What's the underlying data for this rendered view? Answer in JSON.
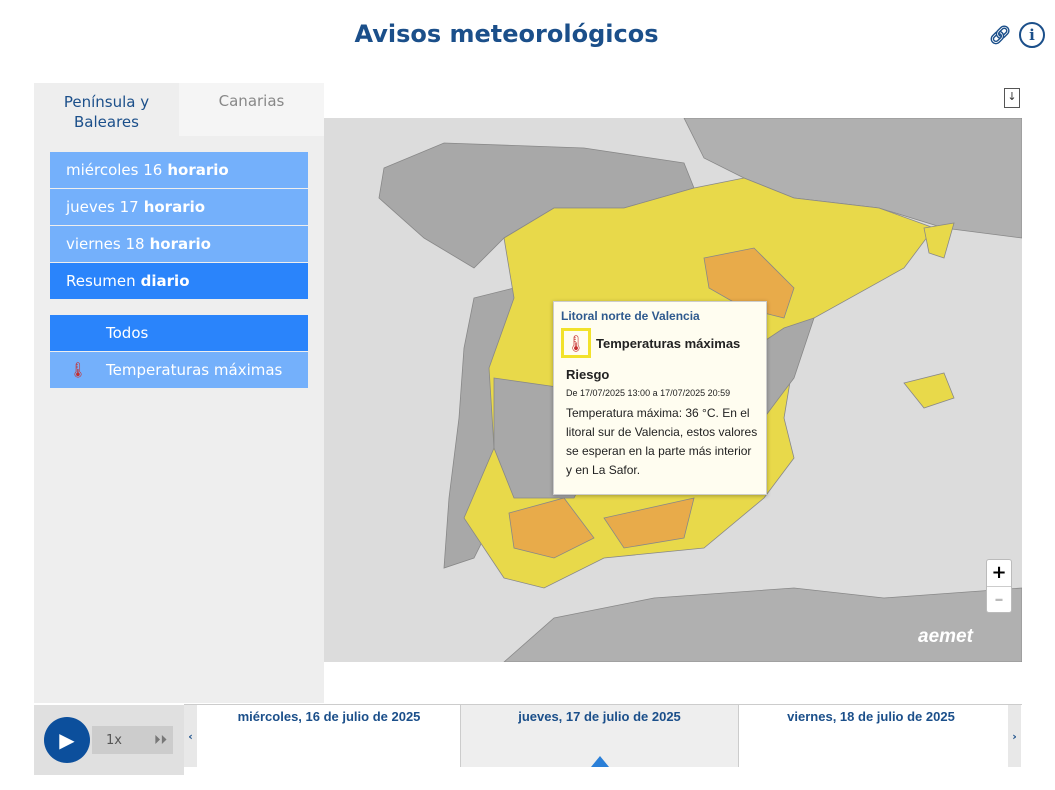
{
  "header": {
    "title": "Avisos meteorológicos",
    "link_icon": "link-icon",
    "info_icon": "info-icon"
  },
  "tabs": [
    {
      "label": "Península y Baleares",
      "active": true
    },
    {
      "label": "Canarias",
      "active": false
    }
  ],
  "days": [
    {
      "day": "miércoles 16",
      "mode": "horario"
    },
    {
      "day": "jueves 17",
      "mode": "horario"
    },
    {
      "day": "viernes 18",
      "mode": "horario"
    },
    {
      "day": "Resumen",
      "mode": "diario",
      "selected": true
    }
  ],
  "filters": [
    {
      "label": "Todos",
      "selected": true
    },
    {
      "label": "Temperaturas máximas",
      "icon": "thermometer-icon"
    }
  ],
  "tooltip": {
    "zone": "Litoral norte de Valencia",
    "type": "Temperaturas máximas",
    "level": "Riesgo",
    "date": "De 17/07/2025 13:00 a 17/07/2025 20:59",
    "description": "Temperatura máxima: 36 °C. En el litoral sur de Valencia, estos valores se esperan en la parte más interior y en La Safor."
  },
  "map": {
    "zoom_in": "+",
    "zoom_out": "–",
    "logo": "aemet",
    "colors": {
      "yellow": "#e8d94a",
      "orange": "#e8ab4a",
      "gray": "#a8a8a8",
      "sea": "#dcdcdc"
    }
  },
  "player": {
    "speed": "1x"
  },
  "timeline": [
    {
      "label": "miércoles, 16 de julio de 2025"
    },
    {
      "label": "jueves, 17 de julio de 2025",
      "selected": true
    },
    {
      "label": "viernes, 18 de julio de 2025"
    }
  ]
}
